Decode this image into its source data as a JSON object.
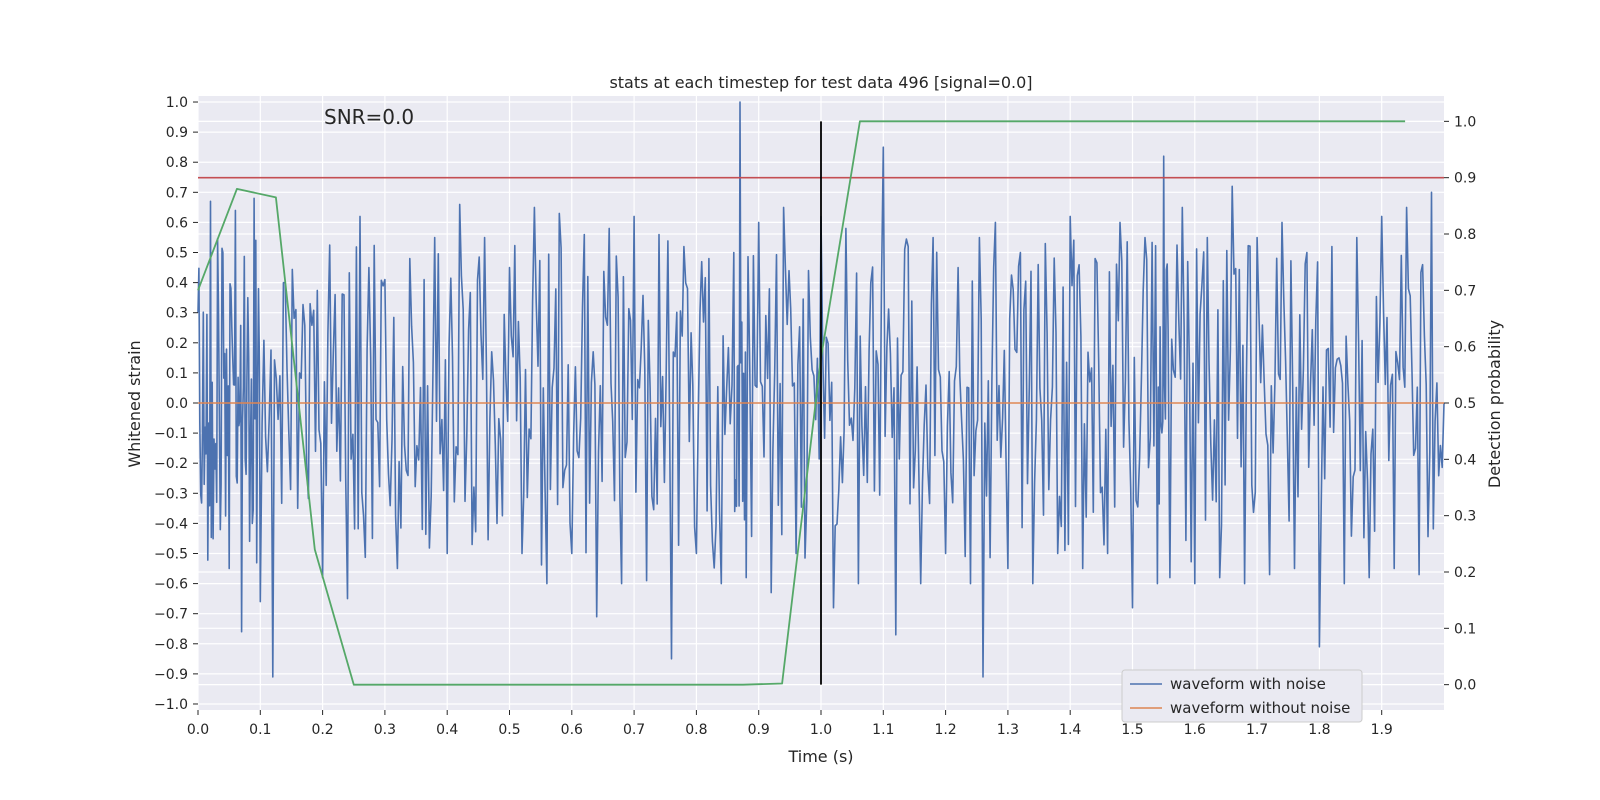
{
  "chart_data": {
    "type": "line",
    "title": "stats at each timestep for test data 496 [signal=0.0]",
    "xlabel": "Time (s)",
    "ylabel": "Whitened strain",
    "y2label": "Detection probability",
    "annotation": "SNR=0.0",
    "xlim": [
      0.0,
      2.0
    ],
    "ylim": [
      -1.02,
      1.02
    ],
    "y2lim": [
      -0.045,
      1.045
    ],
    "grid": true,
    "legend_position": "lower-right",
    "x_ticks": [
      "0.0",
      "0.1",
      "0.2",
      "0.3",
      "0.4",
      "0.5",
      "0.6",
      "0.7",
      "0.8",
      "0.9",
      "1.0",
      "1.1",
      "1.2",
      "1.3",
      "1.4",
      "1.5",
      "1.6",
      "1.7",
      "1.8",
      "1.9"
    ],
    "y_ticks": [
      "1.0",
      "0.9",
      "0.8",
      "0.7",
      "0.6",
      "0.5",
      "0.4",
      "0.3",
      "0.2",
      "0.1",
      "0.0",
      "−0.1",
      "−0.2",
      "−0.3",
      "−0.4",
      "−0.5",
      "−0.6",
      "−0.7",
      "−0.8",
      "−0.9",
      "−1.0"
    ],
    "y2_ticks": [
      "1.0",
      "0.9",
      "0.8",
      "0.7",
      "0.6",
      "0.5",
      "0.4",
      "0.3",
      "0.2",
      "0.1",
      "0.0"
    ],
    "threshold": {
      "axis": "y2",
      "value": 0.9,
      "color": "#c44e52"
    },
    "marker_line": {
      "x": 1.0,
      "color": "#000000"
    },
    "series": [
      {
        "name": "waveform with noise",
        "axis": "y",
        "color": "#4c72b0",
        "note": "dense whitened noise, approx. range -0.91 to 1.0",
        "x": [
          0.0,
          0.01,
          0.02,
          0.03,
          0.04,
          0.05,
          0.06,
          0.07,
          0.08,
          0.09,
          0.1,
          0.12,
          0.14,
          0.16,
          0.18,
          0.2,
          0.22,
          0.24,
          0.26,
          0.28,
          0.3,
          0.32,
          0.34,
          0.36,
          0.38,
          0.4,
          0.42,
          0.44,
          0.46,
          0.48,
          0.5,
          0.52,
          0.54,
          0.56,
          0.58,
          0.6,
          0.62,
          0.64,
          0.66,
          0.68,
          0.7,
          0.72,
          0.74,
          0.76,
          0.78,
          0.8,
          0.82,
          0.84,
          0.86,
          0.87,
          0.88,
          0.9,
          0.92,
          0.94,
          0.96,
          0.98,
          1.0,
          1.02,
          1.04,
          1.06,
          1.08,
          1.1,
          1.12,
          1.14,
          1.16,
          1.18,
          1.2,
          1.22,
          1.24,
          1.26,
          1.28,
          1.3,
          1.32,
          1.34,
          1.36,
          1.38,
          1.4,
          1.42,
          1.44,
          1.46,
          1.48,
          1.5,
          1.52,
          1.54,
          1.55,
          1.56,
          1.58,
          1.6,
          1.62,
          1.64,
          1.66,
          1.68,
          1.7,
          1.72,
          1.74,
          1.76,
          1.78,
          1.8,
          1.82,
          1.84,
          1.86,
          1.88,
          1.9,
          1.92,
          1.94,
          1.96,
          1.98,
          2.0
        ],
        "y": [
          0.3,
          -0.27,
          0.67,
          -0.33,
          0.5,
          -0.55,
          0.64,
          -0.76,
          0.35,
          0.68,
          -0.66,
          -0.91,
          0.4,
          -0.35,
          0.33,
          -0.58,
          0.36,
          -0.65,
          0.62,
          -0.45,
          0.41,
          -0.55,
          0.48,
          -0.42,
          0.55,
          -0.5,
          0.66,
          -0.47,
          0.55,
          -0.4,
          0.45,
          -0.5,
          0.65,
          -0.6,
          0.63,
          -0.5,
          0.56,
          -0.71,
          0.58,
          -0.6,
          0.62,
          -0.59,
          0.56,
          -0.85,
          0.52,
          -0.5,
          0.48,
          -0.6,
          0.5,
          1.0,
          -0.58,
          0.6,
          -0.63,
          0.65,
          -0.5,
          0.44,
          0.62,
          -0.68,
          0.58,
          -0.6,
          0.4,
          0.85,
          -0.77,
          0.52,
          -0.6,
          0.55,
          -0.5,
          0.45,
          -0.6,
          -0.91,
          0.6,
          -0.55,
          0.5,
          -0.6,
          0.53,
          -0.5,
          0.62,
          -0.55,
          0.48,
          -0.5,
          0.6,
          -0.68,
          0.55,
          -0.6,
          0.82,
          -0.58,
          0.65,
          -0.6,
          0.55,
          -0.58,
          0.72,
          -0.6,
          0.55,
          -0.57,
          0.6,
          -0.55,
          0.5,
          -0.81,
          0.52,
          -0.6,
          0.55,
          -0.58,
          0.62,
          -0.55,
          0.65,
          -0.57,
          0.7,
          0.0
        ]
      },
      {
        "name": "waveform without noise",
        "axis": "y",
        "color": "#dd8452",
        "x": [
          0.0,
          2.0
        ],
        "y": [
          0.0,
          0.0
        ]
      },
      {
        "name": "",
        "axis": "y2",
        "color": "#55a868",
        "x": [
          0.0,
          0.0625,
          0.125,
          0.1875,
          0.25,
          0.3125,
          0.375,
          0.4375,
          0.5,
          0.5625,
          0.625,
          0.6875,
          0.75,
          0.8125,
          0.875,
          0.9375,
          1.0,
          1.0625,
          1.125,
          1.1875,
          1.25,
          1.3125,
          1.375,
          1.4375,
          1.5,
          1.5625,
          1.625,
          1.6875,
          1.75,
          1.8125,
          1.875,
          1.9375
        ],
        "y": [
          0.7,
          0.88,
          0.865,
          0.24,
          0.0,
          0.0,
          0.0,
          0.0,
          0.0,
          0.0,
          0.0,
          0.0,
          0.0,
          0.0,
          0.0,
          0.002,
          0.58,
          1.0,
          1.0,
          1.0,
          1.0,
          1.0,
          1.0,
          1.0,
          1.0,
          1.0,
          1.0,
          1.0,
          1.0,
          1.0,
          1.0,
          1.0
        ]
      }
    ]
  }
}
